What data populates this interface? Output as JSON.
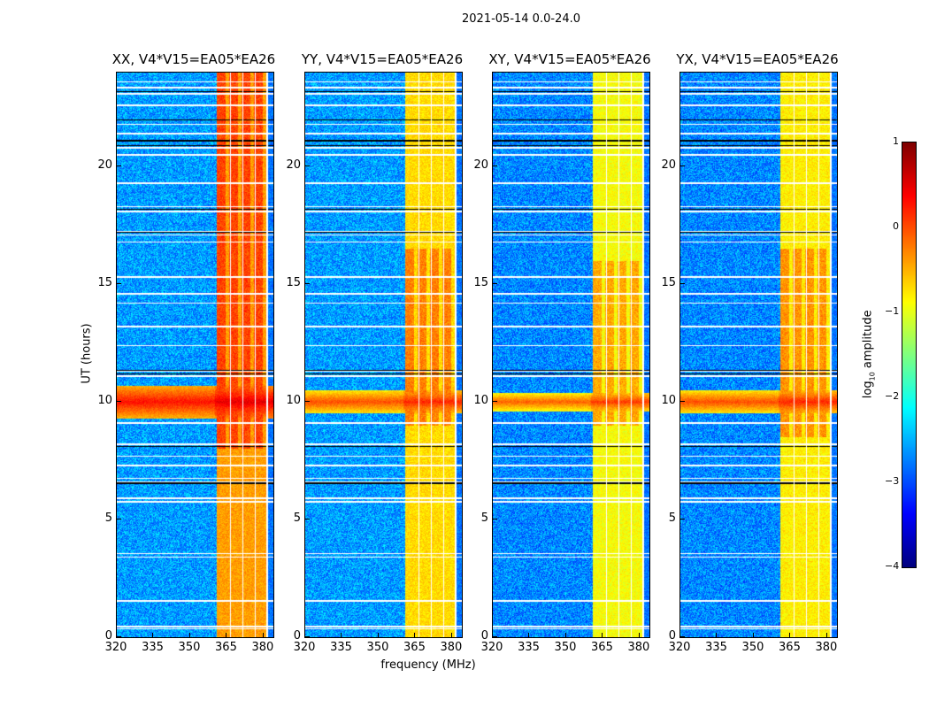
{
  "chart_data": {
    "type": "heatmap",
    "suptitle": "2021-05-14 0.0-24.0",
    "xlabel": "frequency (MHz)",
    "ylabel": "UT (hours)",
    "xlim": [
      320,
      384
    ],
    "ylim": [
      0,
      24
    ],
    "xticks": [
      "320",
      "335",
      "350",
      "365",
      "380"
    ],
    "xtick_values": [
      320,
      335,
      350,
      365,
      380
    ],
    "yticks": [
      "0",
      "5",
      "10",
      "15",
      "20"
    ],
    "ytick_values": [
      0,
      5,
      10,
      15,
      20
    ],
    "colorbar": {
      "label_pre": "log",
      "label_sub": "10",
      "label_post": " amplitude",
      "range": [
        -4,
        1
      ],
      "ticks": [
        "1",
        "0",
        "−1",
        "−2",
        "−3",
        "−4"
      ],
      "tick_values": [
        1,
        0,
        -1,
        -2,
        -3,
        -4
      ],
      "colormap": "jet"
    },
    "panels": [
      {
        "title": "XX, V4*V15=EA05*EA26",
        "background": -2.6,
        "rfi_band": [
          361,
          381
        ],
        "rfi_level": -0.4,
        "rfi_strong_hours": [
          [
            8,
            24
          ]
        ],
        "event_hours": [
          9.3,
          10.7
        ],
        "event_level": 0.5
      },
      {
        "title": "YY, V4*V15=EA05*EA26",
        "background": -2.6,
        "rfi_band": [
          361,
          381
        ],
        "rfi_level": -0.7,
        "rfi_strong_hours": [
          [
            9,
            16.5
          ]
        ],
        "event_hours": [
          9.5,
          10.5
        ],
        "event_level": 0.2
      },
      {
        "title": "XY, V4*V15=EA05*EA26",
        "background": -2.7,
        "rfi_band": [
          361,
          381
        ],
        "rfi_level": -0.9,
        "rfi_strong_hours": [
          [
            9,
            16
          ]
        ],
        "event_hours": [
          9.6,
          10.4
        ],
        "event_level": 0.1
      },
      {
        "title": "YX, V4*V15=EA05*EA26",
        "background": -2.7,
        "rfi_band": [
          361,
          381
        ],
        "rfi_level": -0.8,
        "rfi_strong_hours": [
          [
            8.5,
            16.5
          ]
        ],
        "event_hours": [
          9.5,
          10.5
        ],
        "event_level": 0.2
      }
    ],
    "flagged_channels_mhz": [
      366.5,
      371.5,
      376.5,
      381.5
    ],
    "flagged_hours": [
      0.35,
      0.45,
      1.55,
      3.4,
      3.55,
      5.75,
      5.9,
      6.6,
      6.75,
      7.3,
      7.7,
      8.2,
      9.1,
      11.1,
      11.3,
      12.4,
      13.2,
      14.2,
      14.6,
      15.3,
      16.8,
      17.1,
      17.25,
      18.1,
      18.3,
      19.3,
      20.5,
      20.8,
      21.4,
      21.8,
      22.6,
      23.1,
      23.35,
      23.6
    ],
    "dark_hours": [
      6.55,
      8.1,
      11.2,
      11.35,
      17.2,
      18.2,
      20.9,
      21.1,
      22.0,
      23.2
    ]
  }
}
